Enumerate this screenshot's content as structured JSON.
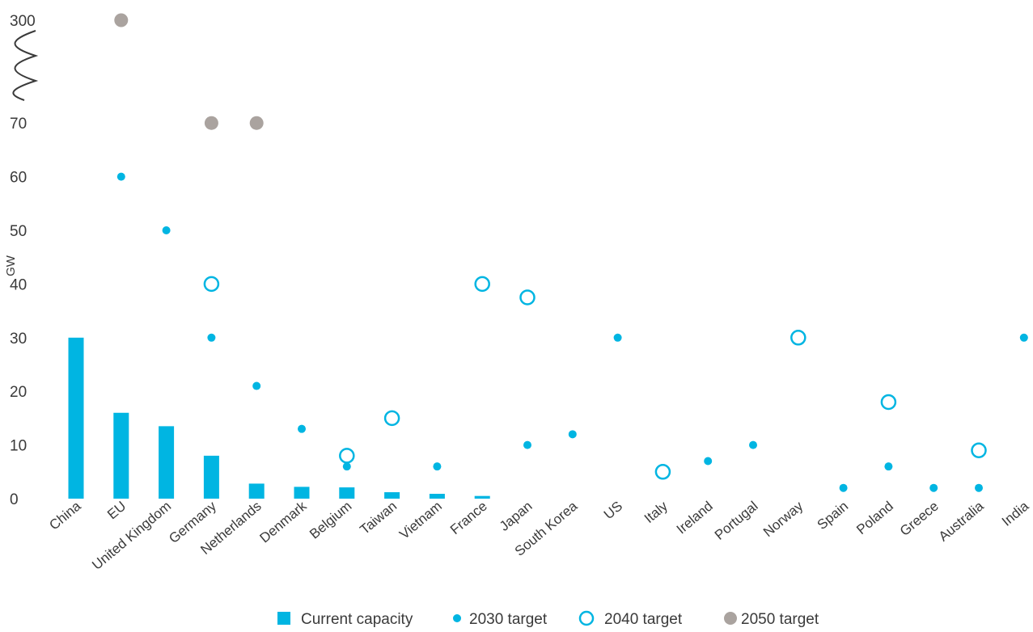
{
  "chart_data": {
    "type": "scatter",
    "ylabel": "GW",
    "y_ticks": [
      "0",
      "10",
      "20",
      "30",
      "40",
      "50",
      "60",
      "70",
      "300"
    ],
    "y_axis_break": "70 to 300",
    "categories": [
      "China",
      "EU",
      "United Kingdom",
      "Germany",
      "Netherlands",
      "Denmark",
      "Belgium",
      "Taiwan",
      "Vietnam",
      "France",
      "Japan",
      "South Korea",
      "US",
      "Italy",
      "Ireland",
      "Portugal",
      "Norway",
      "Spain",
      "Poland",
      "Greece",
      "Australia",
      "India"
    ],
    "series": [
      {
        "name": "Current capacity",
        "mark": "bar",
        "color": "#00b5e2",
        "values": [
          30,
          16,
          13.5,
          8,
          2.8,
          2.2,
          2.1,
          1.2,
          0.9,
          0.5,
          null,
          null,
          null,
          null,
          null,
          null,
          null,
          null,
          null,
          null,
          null,
          null
        ]
      },
      {
        "name": "2030 target",
        "mark": "dot",
        "color": "#00b5e2",
        "values": [
          null,
          60,
          50,
          30,
          21,
          13,
          6,
          null,
          6,
          null,
          10,
          12,
          30,
          null,
          7,
          10,
          null,
          2,
          6,
          2,
          2,
          30
        ]
      },
      {
        "name": "2040 target",
        "mark": "ring",
        "color": "#00b5e2",
        "values": [
          null,
          null,
          null,
          40,
          null,
          null,
          8,
          15,
          null,
          40,
          37.5,
          null,
          null,
          5,
          null,
          null,
          30,
          null,
          18,
          null,
          9,
          null
        ]
      },
      {
        "name": "2050 target",
        "mark": "dot-large",
        "color": "#aaa39f",
        "values": [
          null,
          300,
          null,
          70,
          70,
          null,
          null,
          null,
          null,
          null,
          null,
          null,
          null,
          null,
          null,
          null,
          null,
          null,
          null,
          null,
          null,
          null
        ]
      }
    ]
  }
}
